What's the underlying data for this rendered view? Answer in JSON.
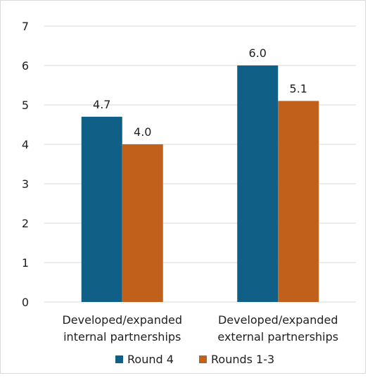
{
  "chart_data": {
    "type": "bar",
    "categories": [
      [
        "Developed/expanded",
        "internal partnerships"
      ],
      [
        "Developed/expanded",
        "external partnerships"
      ]
    ],
    "series": [
      {
        "name": "Round 4",
        "values": [
          4.7,
          6.0
        ],
        "labels": [
          "4.7",
          "6.0"
        ],
        "color": "#0f5f87"
      },
      {
        "name": "Rounds 1-3",
        "values": [
          4.0,
          5.1
        ],
        "labels": [
          "4.0",
          "5.1"
        ],
        "color": "#c0601a"
      }
    ],
    "yticks": [
      "0",
      "1",
      "2",
      "3",
      "4",
      "5",
      "6",
      "7"
    ],
    "ylim": [
      0,
      7
    ],
    "grid": true,
    "legend_position": "bottom",
    "gridline_color": "#d9d9d9"
  }
}
